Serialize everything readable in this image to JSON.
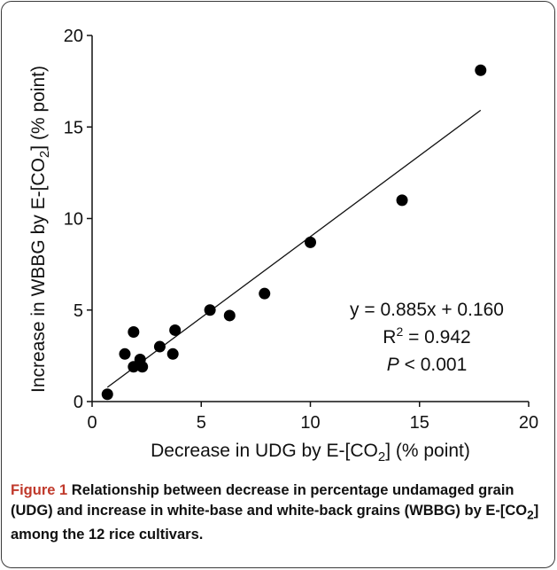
{
  "figure": {
    "caption_label": "Figure 1",
    "caption_text_1": " Relationship between decrease in percentage undamaged grain (UDG) and increase in white-base and white-back grains (WBBG) by E-[CO",
    "caption_sub": "2",
    "caption_text_2": "] among the 12 rice cultivars."
  },
  "chart_data": {
    "type": "scatter",
    "title": "",
    "xlabel_pre": "Decrease in UDG by E-[CO",
    "xlabel_sub": "2",
    "xlabel_post": "] (% point)",
    "ylabel_pre": "Increase in WBBG by E-[CO",
    "ylabel_sub": "2",
    "ylabel_post": "] (% point)",
    "xlim": [
      0,
      20
    ],
    "ylim": [
      0,
      20
    ],
    "xticks": [
      0,
      5,
      10,
      15,
      20
    ],
    "yticks": [
      0,
      5,
      10,
      15,
      20
    ],
    "grid": false,
    "points": [
      {
        "x": 0.7,
        "y": 0.4
      },
      {
        "x": 1.5,
        "y": 2.6
      },
      {
        "x": 1.9,
        "y": 1.9
      },
      {
        "x": 1.9,
        "y": 3.8
      },
      {
        "x": 2.2,
        "y": 2.3
      },
      {
        "x": 2.3,
        "y": 1.9
      },
      {
        "x": 3.1,
        "y": 3.0
      },
      {
        "x": 3.7,
        "y": 2.6
      },
      {
        "x": 3.8,
        "y": 3.9
      },
      {
        "x": 5.4,
        "y": 5.0
      },
      {
        "x": 6.3,
        "y": 4.7
      },
      {
        "x": 7.9,
        "y": 5.9
      },
      {
        "x": 10.0,
        "y": 8.7
      },
      {
        "x": 14.2,
        "y": 11.0
      },
      {
        "x": 17.8,
        "y": 18.1
      }
    ],
    "fit": {
      "slope": 0.885,
      "intercept": 0.16,
      "x_range": [
        0.7,
        17.8
      ]
    },
    "annotation": {
      "equation": "y = 0.885x + 0.160",
      "r2_pre": "R",
      "r2_sup": "2",
      "r2_post": " = 0.942",
      "p_italic": "P",
      "p_post": " < 0.001"
    },
    "marker_color": "#000000"
  }
}
